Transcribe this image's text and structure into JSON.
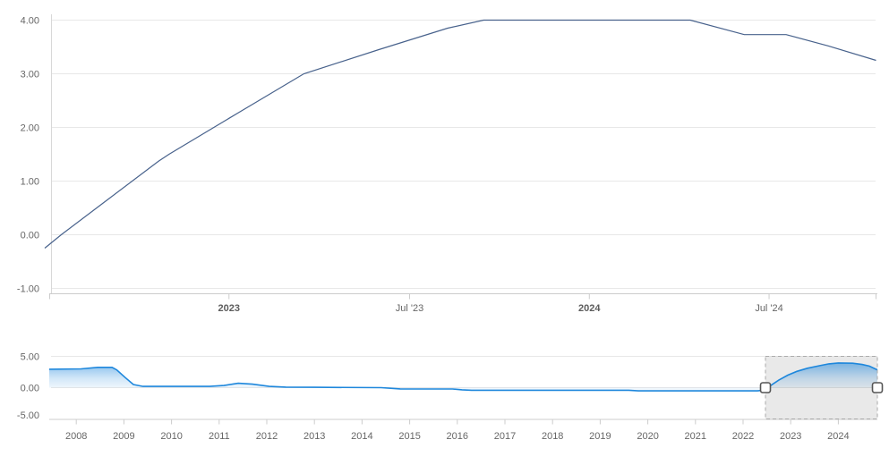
{
  "chart_data": {
    "type": "line",
    "description": "Interest rate time-series chart with bottom range navigator",
    "colors": {
      "main_line": "#48628c",
      "nav_line": "#1e87dc",
      "nav_fill_base": "#1e87dc",
      "grid": "#e8e8e8",
      "axis": "#cccccc",
      "y_axis_line": "#d8d8d8",
      "tick": "#cccccc",
      "label": "#666666",
      "selection_fill": "rgba(0,0,0,0.085)",
      "selection_border": "#ababab",
      "handle_fill": "#ffffff",
      "handle_border": "#555555"
    },
    "main_chart": {
      "ylim": [
        -1.1,
        4.1
      ],
      "y_ticks": [
        {
          "label": "4.00",
          "value": 4
        },
        {
          "label": "3.00",
          "value": 3
        },
        {
          "label": "2.00",
          "value": 2
        },
        {
          "label": "1.00",
          "value": 1
        },
        {
          "label": "0.00",
          "value": 0
        },
        {
          "label": "-1.00",
          "value": -1
        }
      ],
      "x_ticks": [
        {
          "label": "2023",
          "t": 6,
          "bold": true
        },
        {
          "label": "Jul '23",
          "t": 12.03,
          "bold": false
        },
        {
          "label": "2024",
          "t": 18.03,
          "bold": true
        },
        {
          "label": "Jul '24",
          "t": 24.03,
          "bold": false
        }
      ],
      "t_unit": "months since 2022-07-01",
      "points": [
        [
          -0.15,
          -0.25
        ],
        [
          0.4,
          0.0
        ],
        [
          1.94,
          0.65
        ],
        [
          3.65,
          1.37
        ],
        [
          4.0,
          1.5
        ],
        [
          6.0,
          2.17
        ],
        [
          8.5,
          3.0
        ],
        [
          11.0,
          3.45
        ],
        [
          13.3,
          3.85
        ],
        [
          14.5,
          4.0
        ],
        [
          21.4,
          4.0
        ],
        [
          23.2,
          3.73
        ],
        [
          24.6,
          3.73
        ],
        [
          26.0,
          3.52
        ],
        [
          27.6,
          3.25
        ]
      ]
    },
    "navigator": {
      "ylim": [
        -5,
        5
      ],
      "y_ticks": [
        {
          "label": "5.00",
          "value": 5
        },
        {
          "label": "0.00",
          "value": 0
        },
        {
          "label": "-5.00",
          "value": -5
        }
      ],
      "years": [
        2008,
        2009,
        2010,
        2011,
        2012,
        2013,
        2014,
        2015,
        2016,
        2017,
        2018,
        2019,
        2020,
        2021,
        2022,
        2023,
        2024
      ],
      "points": [
        [
          2007.43,
          2.95
        ],
        [
          2008.1,
          3.0
        ],
        [
          2008.45,
          3.25
        ],
        [
          2008.75,
          3.25
        ],
        [
          2008.85,
          2.85
        ],
        [
          2009.03,
          1.6
        ],
        [
          2009.2,
          0.5
        ],
        [
          2009.4,
          0.2
        ],
        [
          2010.8,
          0.2
        ],
        [
          2011.1,
          0.35
        ],
        [
          2011.4,
          0.7
        ],
        [
          2011.7,
          0.55
        ],
        [
          2012.05,
          0.2
        ],
        [
          2012.4,
          0.08
        ],
        [
          2013.0,
          0.05
        ],
        [
          2014.4,
          0.0
        ],
        [
          2014.6,
          -0.1
        ],
        [
          2014.8,
          -0.2
        ],
        [
          2015.9,
          -0.22
        ],
        [
          2016.1,
          -0.35
        ],
        [
          2016.3,
          -0.42
        ],
        [
          2019.6,
          -0.42
        ],
        [
          2019.8,
          -0.52
        ],
        [
          2022.3,
          -0.52
        ],
        [
          2022.45,
          -0.4
        ],
        [
          2022.56,
          0.25
        ],
        [
          2022.75,
          1.2
        ],
        [
          2022.94,
          2.0
        ],
        [
          2023.13,
          2.6
        ],
        [
          2023.35,
          3.1
        ],
        [
          2023.6,
          3.5
        ],
        [
          2023.8,
          3.8
        ],
        [
          2024.0,
          3.95
        ],
        [
          2024.3,
          3.9
        ],
        [
          2024.5,
          3.7
        ],
        [
          2024.65,
          3.45
        ],
        [
          2024.82,
          2.85
        ]
      ],
      "selection": {
        "from_year": 2022.47,
        "to_year": 2024.82
      }
    }
  }
}
